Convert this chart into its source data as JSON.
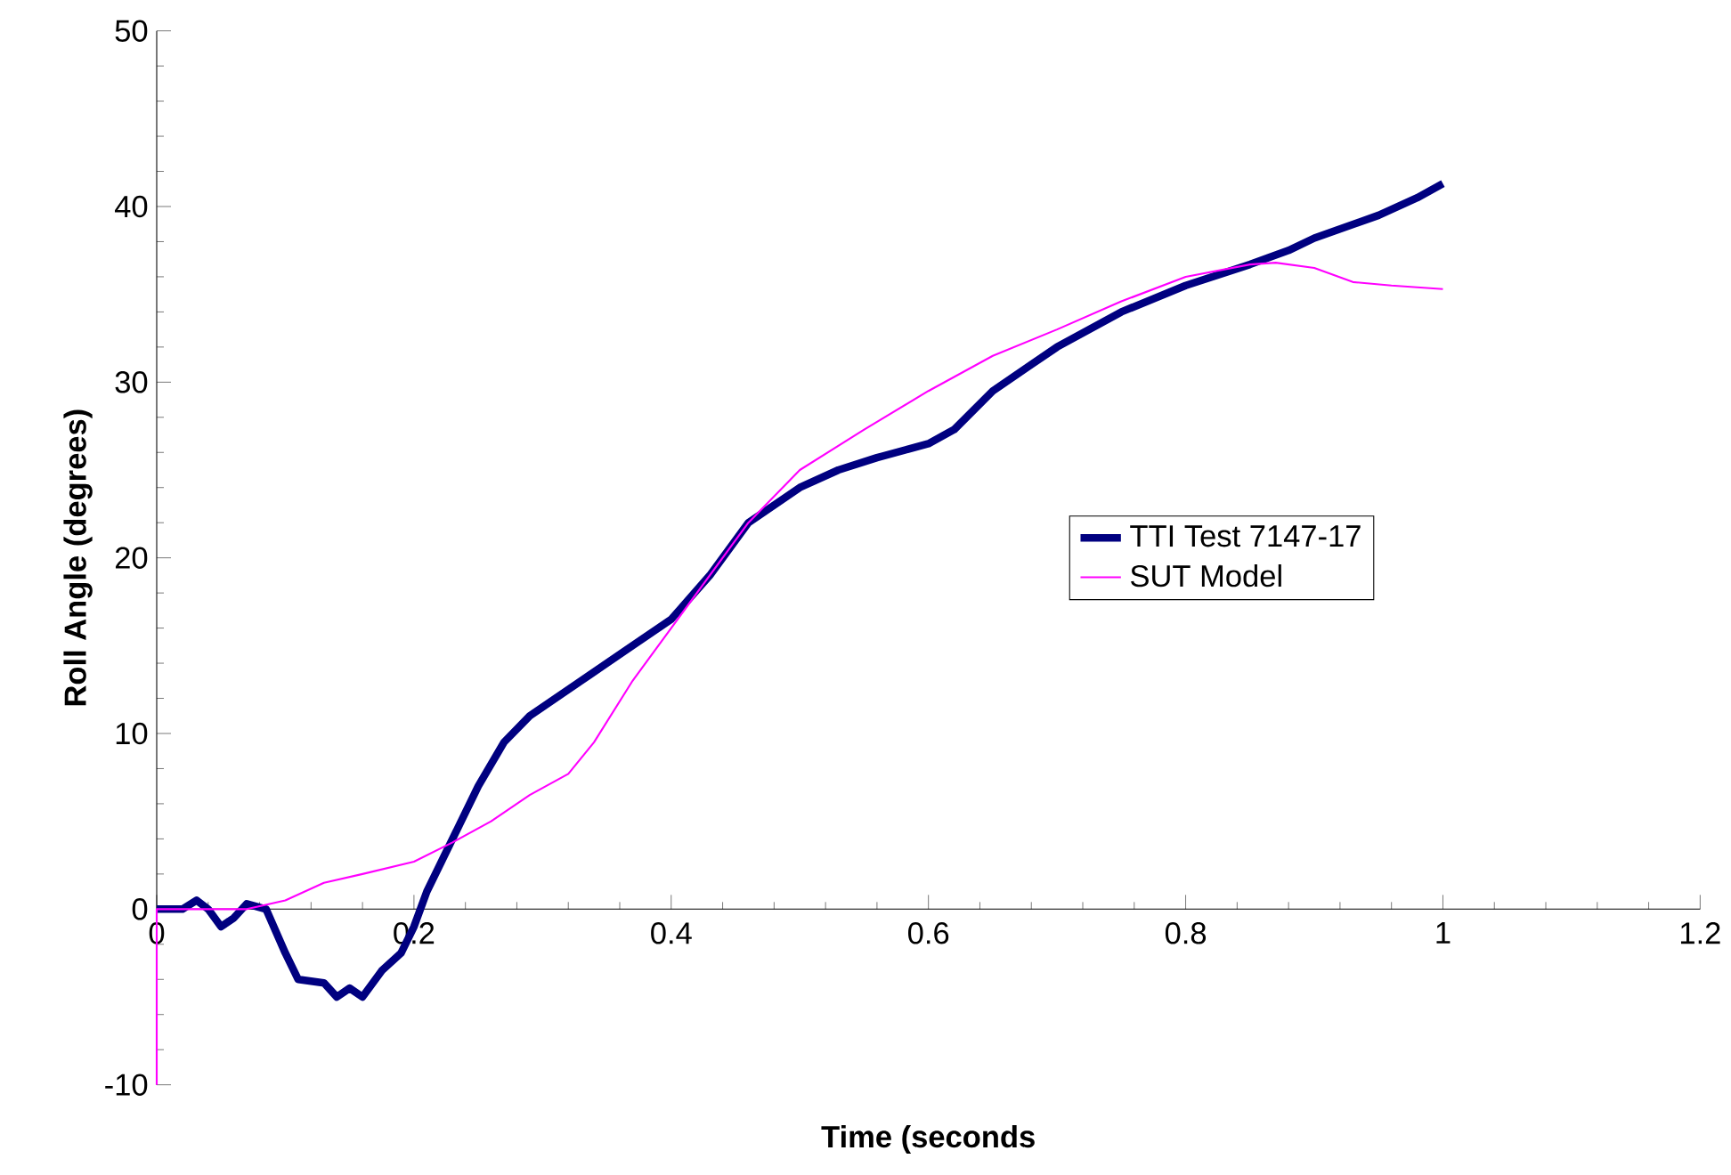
{
  "chart_data": {
    "type": "line",
    "xlabel": "Time (seconds",
    "ylabel": "Roll Angle (degrees)",
    "xlim": [
      0,
      1.2
    ],
    "ylim": [
      -10,
      50
    ],
    "xticks": [
      0,
      0.2,
      0.4,
      0.6,
      0.8,
      1,
      1.2
    ],
    "yticks": [
      -10,
      0,
      10,
      20,
      30,
      40,
      50
    ],
    "grid": false,
    "legend": "right",
    "marker": "none",
    "line_style": "solid",
    "series": [
      {
        "name": "TTI Test 7147-17",
        "color": "#000080",
        "x": [
          0,
          0.02,
          0.031,
          0.04,
          0.05,
          0.06,
          0.07,
          0.085,
          0.1,
          0.11,
          0.13,
          0.14,
          0.15,
          0.16,
          0.175,
          0.19,
          0.2,
          0.21,
          0.23,
          0.25,
          0.27,
          0.29,
          0.31,
          0.33,
          0.35,
          0.37,
          0.4,
          0.43,
          0.46,
          0.48,
          0.5,
          0.53,
          0.56,
          0.6,
          0.62,
          0.65,
          0.68,
          0.7,
          0.75,
          0.8,
          0.85,
          0.88,
          0.9,
          0.95,
          0.98,
          1.0
        ],
        "values": [
          0,
          0,
          0.5,
          0,
          -1,
          -0.5,
          0.3,
          0,
          -2.5,
          -4,
          -4.2,
          -5,
          -4.5,
          -5,
          -3.5,
          -2.5,
          -1,
          1,
          4,
          7,
          9.5,
          11,
          12,
          13,
          14,
          15,
          16.5,
          19,
          22,
          23,
          24,
          25,
          25.7,
          26.5,
          27.3,
          29.5,
          31,
          32,
          34,
          35.5,
          36.7,
          37.5,
          38.2,
          39.5,
          40.5,
          41.3
        ]
      },
      {
        "name": "SUT Model",
        "color": "#ff00ff",
        "x": [
          0,
          0,
          0.07,
          0.1,
          0.13,
          0.16,
          0.2,
          0.23,
          0.26,
          0.29,
          0.32,
          0.34,
          0.37,
          0.4,
          0.43,
          0.46,
          0.5,
          0.55,
          0.6,
          0.65,
          0.7,
          0.75,
          0.8,
          0.85,
          0.87,
          0.9,
          0.93,
          0.96,
          1.0
        ],
        "values": [
          -10,
          0,
          0,
          0.5,
          1.5,
          2,
          2.7,
          3.8,
          5,
          6.5,
          7.7,
          9.5,
          13,
          16,
          19,
          22,
          25,
          27.3,
          29.5,
          31.5,
          33,
          34.6,
          36,
          36.7,
          36.8,
          36.5,
          35.7,
          35.5,
          35.3
        ]
      }
    ]
  }
}
